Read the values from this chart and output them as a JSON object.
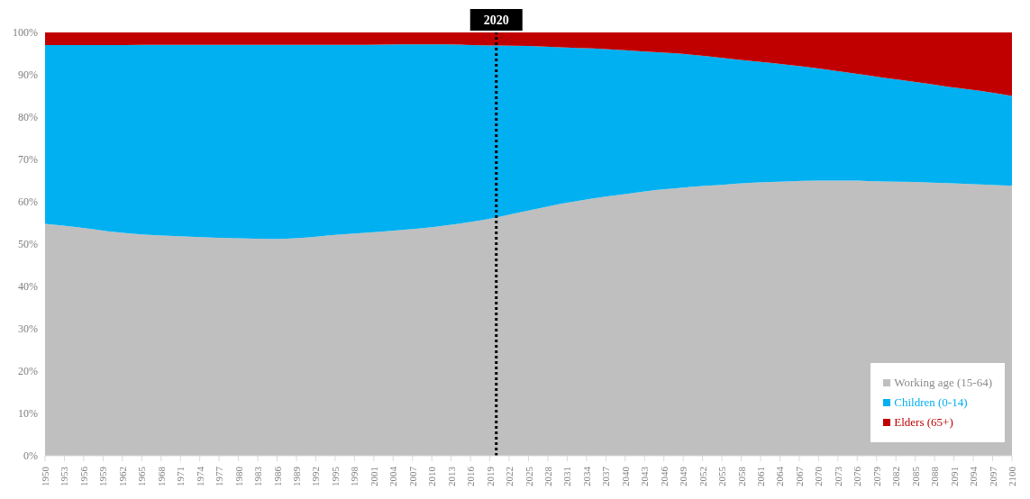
{
  "chart_data": {
    "type": "area",
    "stacked": true,
    "x": [
      1950,
      1955,
      1960,
      1965,
      1970,
      1975,
      1980,
      1985,
      1990,
      1995,
      2000,
      2005,
      2010,
      2015,
      2020,
      2025,
      2030,
      2035,
      2040,
      2045,
      2050,
      2055,
      2060,
      2065,
      2070,
      2075,
      2080,
      2085,
      2090,
      2095,
      2100
    ],
    "series": [
      {
        "name": "Working age (15-64)",
        "color": "#bfbfbf",
        "values": [
          54.8,
          54.0,
          53.0,
          52.3,
          51.9,
          51.6,
          51.4,
          51.2,
          51.5,
          52.2,
          52.7,
          53.3,
          54.0,
          55.0,
          56.3,
          57.9,
          59.5,
          60.8,
          61.8,
          62.8,
          63.5,
          64.0,
          64.5,
          64.8,
          65.0,
          65.0,
          64.8,
          64.7,
          64.4,
          64.1,
          63.8
        ]
      },
      {
        "name": "Children (0-14)",
        "color": "#00b0f0",
        "values": [
          42.2,
          43.0,
          44.0,
          44.8,
          45.2,
          45.5,
          45.7,
          45.9,
          45.6,
          44.9,
          44.4,
          43.9,
          43.2,
          42.1,
          40.6,
          38.9,
          37.0,
          35.4,
          34.0,
          32.5,
          31.3,
          30.0,
          28.7,
          27.6,
          26.5,
          25.4,
          24.5,
          23.6,
          22.8,
          22.1,
          21.2
        ]
      },
      {
        "name": "Elders (65+)",
        "color": "#c00000",
        "values": [
          3.0,
          3.0,
          3.0,
          2.9,
          2.9,
          2.9,
          2.9,
          2.9,
          2.9,
          2.9,
          2.9,
          2.8,
          2.8,
          2.9,
          3.1,
          3.2,
          3.5,
          3.8,
          4.2,
          4.7,
          5.2,
          6.0,
          6.8,
          7.6,
          8.5,
          9.6,
          10.7,
          11.7,
          12.8,
          13.8,
          15.0
        ]
      }
    ],
    "xlim": [
      1950,
      2100
    ],
    "xticks": [
      1950,
      1953,
      1956,
      1959,
      1962,
      1965,
      1968,
      1971,
      1974,
      1977,
      1980,
      1983,
      1986,
      1989,
      1992,
      1995,
      1998,
      2001,
      2004,
      2007,
      2010,
      2013,
      2016,
      2019,
      2022,
      2025,
      2028,
      2031,
      2034,
      2037,
      2040,
      2043,
      2046,
      2049,
      2052,
      2055,
      2058,
      2061,
      2064,
      2067,
      2070,
      2073,
      2076,
      2079,
      2082,
      2085,
      2088,
      2091,
      2094,
      2097,
      2100
    ],
    "ylim": [
      0,
      100
    ],
    "yticks": [
      {
        "value": 0,
        "label": "0%"
      },
      {
        "value": 10,
        "label": "10%"
      },
      {
        "value": 20,
        "label": "20%"
      },
      {
        "value": 30,
        "label": "30%"
      },
      {
        "value": 40,
        "label": "40%"
      },
      {
        "value": 50,
        "label": "50%"
      },
      {
        "value": 60,
        "label": "60%"
      },
      {
        "value": 70,
        "label": "70%"
      },
      {
        "value": 80,
        "label": "80%"
      },
      {
        "value": 90,
        "label": "90%"
      },
      {
        "value": 100,
        "label": "100%"
      }
    ],
    "ref_lines": [
      {
        "axis": "x",
        "value": 2020,
        "label": "2020",
        "color": "#000000",
        "line_style": "dotted"
      }
    ],
    "legend": "bottom right",
    "grid": false
  }
}
